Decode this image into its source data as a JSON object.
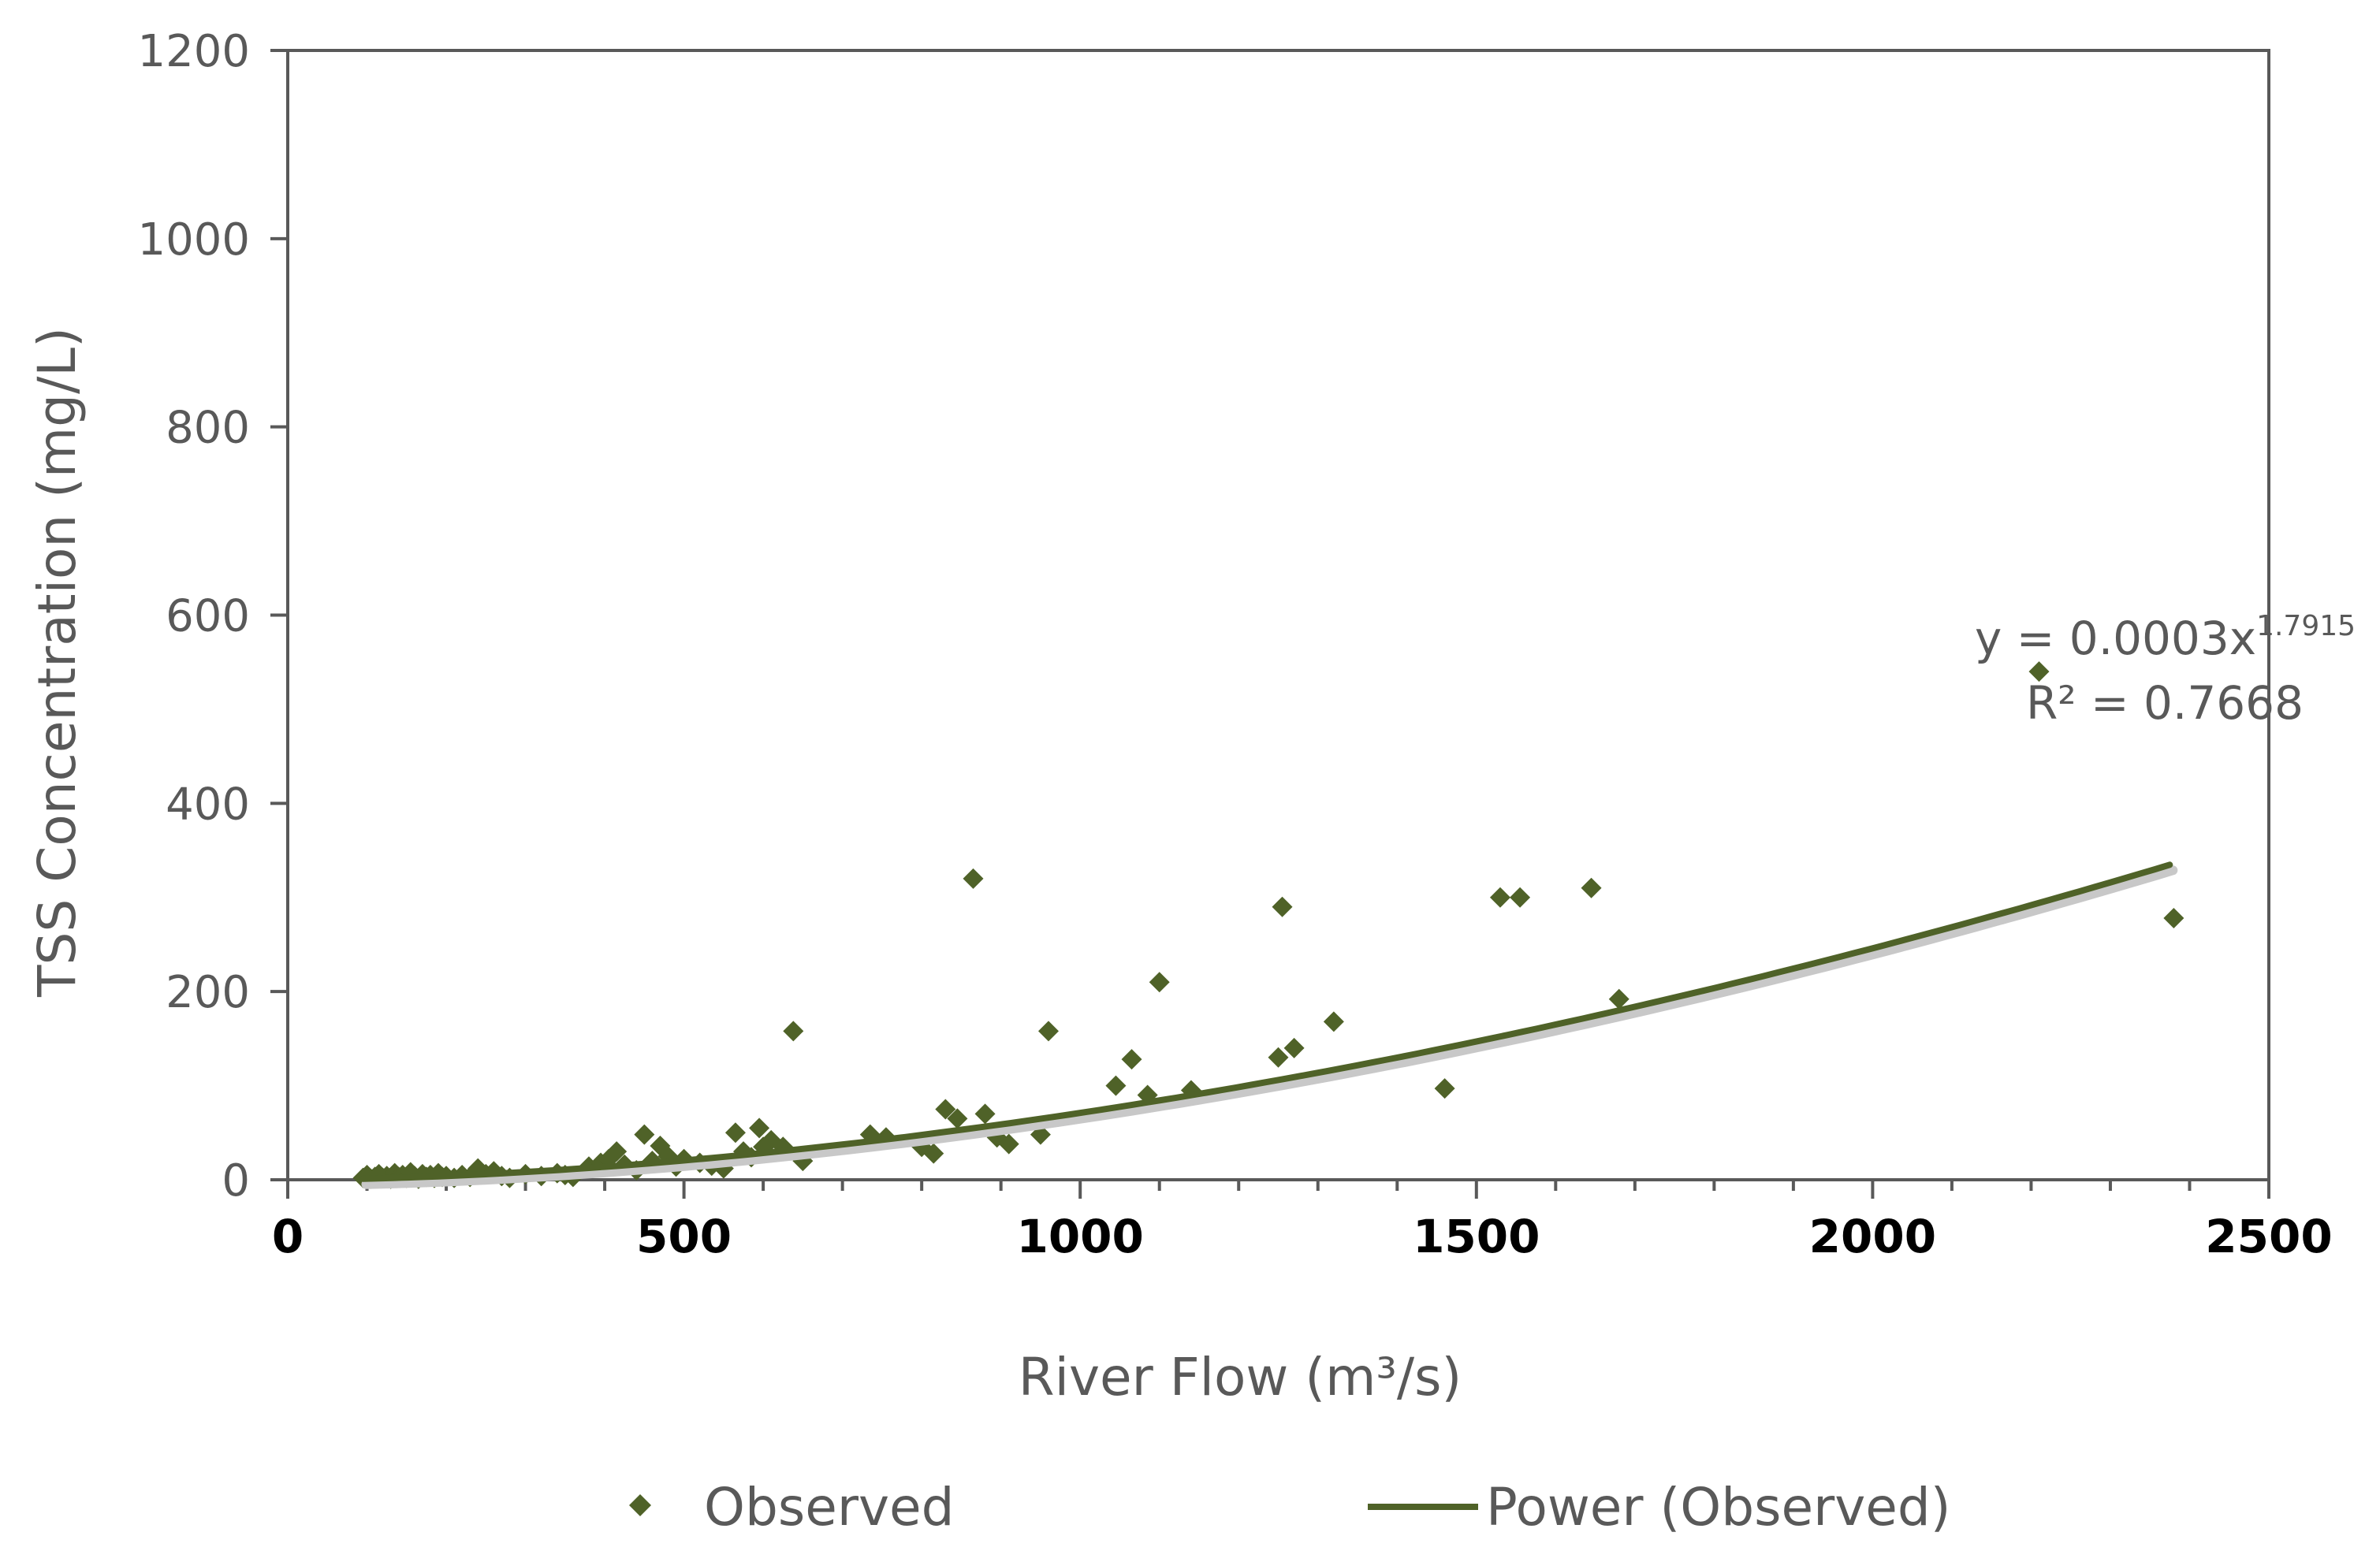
{
  "chart_data": {
    "type": "scatter",
    "title": "",
    "xlabel": "River Flow (m³/s)",
    "ylabel": "TSS Concentration (mg/L)",
    "xlim": [
      0,
      2500
    ],
    "ylim": [
      0,
      1200
    ],
    "x_ticks": [
      "0",
      "500",
      "1000",
      "1500",
      "2000",
      "2500"
    ],
    "y_ticks": [
      "0",
      "200",
      "400",
      "600",
      "800",
      "1000",
      "1200"
    ],
    "grid": false,
    "legend_position": "bottom",
    "series": [
      {
        "name": "Observed",
        "kind": "scatter",
        "marker": "diamond",
        "color": "#4f6228",
        "points": [
          [
            95,
            2
          ],
          [
            100,
            5
          ],
          [
            105,
            1
          ],
          [
            110,
            3
          ],
          [
            115,
            6
          ],
          [
            120,
            2
          ],
          [
            125,
            4
          ],
          [
            130,
            1
          ],
          [
            135,
            7
          ],
          [
            140,
            3
          ],
          [
            145,
            5
          ],
          [
            150,
            2
          ],
          [
            155,
            8
          ],
          [
            160,
            4
          ],
          [
            165,
            1
          ],
          [
            170,
            6
          ],
          [
            175,
            3
          ],
          [
            180,
            5
          ],
          [
            185,
            2
          ],
          [
            190,
            7
          ],
          [
            195,
            3
          ],
          [
            200,
            4
          ],
          [
            210,
            2
          ],
          [
            220,
            5
          ],
          [
            230,
            3
          ],
          [
            240,
            12
          ],
          [
            250,
            6
          ],
          [
            260,
            9
          ],
          [
            270,
            4
          ],
          [
            280,
            2
          ],
          [
            300,
            6
          ],
          [
            320,
            4
          ],
          [
            340,
            7
          ],
          [
            350,
            5
          ],
          [
            360,
            3
          ],
          [
            380,
            14
          ],
          [
            395,
            18
          ],
          [
            405,
            22
          ],
          [
            415,
            30
          ],
          [
            425,
            16
          ],
          [
            440,
            10
          ],
          [
            450,
            48
          ],
          [
            460,
            20
          ],
          [
            470,
            36
          ],
          [
            480,
            25
          ],
          [
            490,
            14
          ],
          [
            500,
            22
          ],
          [
            520,
            18
          ],
          [
            535,
            15
          ],
          [
            550,
            12
          ],
          [
            565,
            50
          ],
          [
            575,
            30
          ],
          [
            585,
            24
          ],
          [
            595,
            55
          ],
          [
            600,
            35
          ],
          [
            610,
            42
          ],
          [
            625,
            35
          ],
          [
            638,
            158
          ],
          [
            650,
            20
          ],
          [
            735,
            48
          ],
          [
            755,
            45
          ],
          [
            800,
            35
          ],
          [
            815,
            28
          ],
          [
            830,
            75
          ],
          [
            845,
            65
          ],
          [
            865,
            320
          ],
          [
            880,
            70
          ],
          [
            895,
            45
          ],
          [
            910,
            38
          ],
          [
            950,
            48
          ],
          [
            960,
            158
          ],
          [
            1045,
            100
          ],
          [
            1065,
            128
          ],
          [
            1085,
            90
          ],
          [
            1100,
            210
          ],
          [
            1140,
            95
          ],
          [
            1250,
            130
          ],
          [
            1255,
            290
          ],
          [
            1270,
            140
          ],
          [
            1320,
            168
          ],
          [
            1460,
            97
          ],
          [
            1530,
            300
          ],
          [
            1555,
            300
          ],
          [
            1645,
            310
          ],
          [
            1680,
            192
          ],
          [
            2210,
            540
          ],
          [
            2380,
            278
          ]
        ]
      },
      {
        "name": "Power (Observed)",
        "kind": "trendline",
        "color": "#4f6228",
        "equation": {
          "coefficient": 0.0003,
          "exponent": 1.7915
        },
        "x_range": [
          95,
          2375
        ]
      }
    ],
    "annotations": {
      "equation_main": "y = 0.0003x",
      "equation_exponent": "1.7915",
      "r_squared": "R² = 0.7668"
    }
  }
}
